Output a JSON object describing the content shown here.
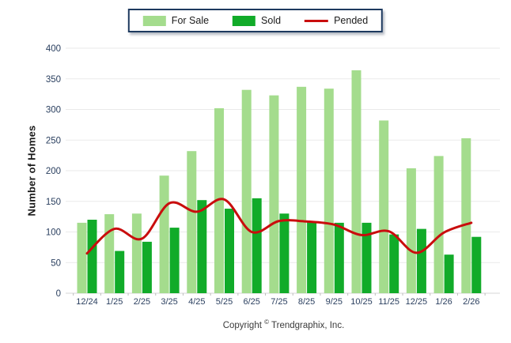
{
  "footer": {
    "prefix": "Copyright",
    "symbol": "©",
    "suffix": " Trendgraphix, Inc."
  },
  "colors": {
    "for_sale": "#A4DC8D",
    "sold": "#11AB29",
    "pended": "#C90D0D",
    "grid": "#EAEAEA",
    "baseline": "#D5D5D5",
    "tick": "#BDBDBD",
    "tick_text": "#2A3F5F",
    "axis_title_text": "#1A1A1A",
    "legend_border": "#1E3A5F"
  },
  "chart_data": {
    "type": "bar",
    "title": "",
    "xlabel": "",
    "ylabel": "Number of Homes",
    "categories": [
      "12/24",
      "1/25",
      "2/25",
      "3/25",
      "4/25",
      "5/25",
      "6/25",
      "7/25",
      "8/25",
      "9/25",
      "10/25",
      "11/25",
      "12/25",
      "1/26",
      "2/26"
    ],
    "series": [
      {
        "name": "For Sale",
        "type": "bar",
        "color": "#A4DC8D",
        "values": [
          115,
          129,
          130,
          192,
          232,
          302,
          332,
          323,
          337,
          334,
          364,
          282,
          204,
          224,
          253
        ]
      },
      {
        "name": "Sold",
        "type": "bar",
        "color": "#11AB29",
        "values": [
          120,
          69,
          84,
          107,
          152,
          138,
          155,
          130,
          116,
          115,
          115,
          96,
          105,
          63,
          92
        ]
      },
      {
        "name": "Pended",
        "type": "line",
        "color": "#C90D0D",
        "values": [
          65,
          105,
          89,
          147,
          133,
          153,
          100,
          118,
          117,
          112,
          95,
          101,
          66,
          99,
          115
        ]
      }
    ],
    "ylim": [
      0,
      400
    ],
    "ytick_step": 50,
    "grid": true,
    "legend_position": "top-center"
  }
}
